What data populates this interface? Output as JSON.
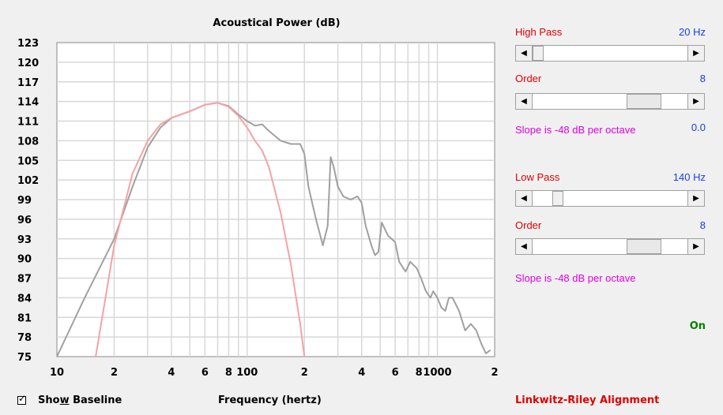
{
  "chart_data": {
    "type": "line",
    "title": "Acoustical Power (dB)",
    "xlabel": "Frequency (hertz)",
    "ylabel": "",
    "xscale": "log",
    "xlim": [
      10,
      2000
    ],
    "ylim": [
      75,
      123
    ],
    "y_ticks": [
      "123",
      "120",
      "117",
      "114",
      "111",
      "108",
      "105",
      "102",
      "99",
      "96",
      "93",
      "90",
      "87",
      "84",
      "81",
      "78",
      "75"
    ],
    "x_ticks": [
      {
        "value": 10,
        "label": "10"
      },
      {
        "value": 20,
        "label": "2"
      },
      {
        "value": 40,
        "label": "4"
      },
      {
        "value": 60,
        "label": "6"
      },
      {
        "value": 80,
        "label": "8"
      },
      {
        "value": 100,
        "label": "100"
      },
      {
        "value": 200,
        "label": "2"
      },
      {
        "value": 400,
        "label": "4"
      },
      {
        "value": 600,
        "label": "6"
      },
      {
        "value": 800,
        "label": "8"
      },
      {
        "value": 1000,
        "label": "1000"
      },
      {
        "value": 2000,
        "label": "2"
      }
    ],
    "grid": true,
    "series": [
      {
        "name": "",
        "color": "#a0a0a0",
        "points": [
          [
            10,
            75
          ],
          [
            14,
            84
          ],
          [
            20,
            93
          ],
          [
            25,
            101
          ],
          [
            30,
            107
          ],
          [
            35,
            110
          ],
          [
            40,
            111.5
          ],
          [
            50,
            112.5
          ],
          [
            60,
            113.5
          ],
          [
            70,
            113.8
          ],
          [
            80,
            113.3
          ],
          [
            90,
            112
          ],
          [
            100,
            111
          ],
          [
            110,
            110.3
          ],
          [
            120,
            110.5
          ],
          [
            130,
            109.5
          ],
          [
            150,
            108
          ],
          [
            170,
            107.5
          ],
          [
            190,
            107.5
          ],
          [
            200,
            106
          ],
          [
            210,
            101
          ],
          [
            230,
            96
          ],
          [
            250,
            92
          ],
          [
            265,
            95
          ],
          [
            275,
            105.5
          ],
          [
            285,
            104
          ],
          [
            300,
            101
          ],
          [
            320,
            99.5
          ],
          [
            350,
            99
          ],
          [
            380,
            99.5
          ],
          [
            400,
            98.5
          ],
          [
            420,
            95
          ],
          [
            450,
            92
          ],
          [
            470,
            90.5
          ],
          [
            490,
            91
          ],
          [
            510,
            95.5
          ],
          [
            550,
            93.5
          ],
          [
            600,
            92.5
          ],
          [
            630,
            89.5
          ],
          [
            680,
            88
          ],
          [
            720,
            89.5
          ],
          [
            780,
            88.5
          ],
          [
            820,
            87
          ],
          [
            870,
            85
          ],
          [
            920,
            84
          ],
          [
            950,
            85
          ],
          [
            1000,
            84
          ],
          [
            1050,
            82.5
          ],
          [
            1100,
            82
          ],
          [
            1150,
            84
          ],
          [
            1200,
            84
          ],
          [
            1300,
            82
          ],
          [
            1400,
            79
          ],
          [
            1500,
            80
          ],
          [
            1600,
            79
          ],
          [
            1700,
            77
          ],
          [
            1800,
            75.5
          ],
          [
            1900,
            76
          ]
        ]
      },
      {
        "name": "",
        "color": "#f4a3a3",
        "points": [
          [
            16,
            75
          ],
          [
            18,
            84
          ],
          [
            20,
            92
          ],
          [
            25,
            103
          ],
          [
            30,
            108
          ],
          [
            35,
            110.5
          ],
          [
            40,
            111.5
          ],
          [
            50,
            112.5
          ],
          [
            60,
            113.5
          ],
          [
            70,
            113.8
          ],
          [
            80,
            113.2
          ],
          [
            90,
            111.8
          ],
          [
            100,
            110
          ],
          [
            110,
            108
          ],
          [
            120,
            106.5
          ],
          [
            130,
            104
          ],
          [
            150,
            97
          ],
          [
            170,
            89
          ],
          [
            190,
            80
          ],
          [
            200,
            75
          ]
        ]
      }
    ]
  },
  "show_baseline": {
    "label_pre": "Sho",
    "label_u": "w",
    "label_post": " Baseline",
    "checked_mark": "✓"
  },
  "high_pass": {
    "label": "High Pass",
    "value": "20 Hz",
    "thumb_pos": 0.0,
    "order_label": "Order",
    "order_value": "8",
    "order_pos": 0.78,
    "slope_text": "Slope is -48 dB per octave",
    "offset_value": "0.0"
  },
  "low_pass": {
    "label": "Low Pass",
    "value": "140 Hz",
    "thumb_pos": 0.14,
    "order_label": "Order",
    "order_value": "8",
    "order_pos": 0.78,
    "slope_text": "Slope is -48 dB per octave"
  },
  "status": "On",
  "alignment": "Linkwitz-Riley Alignment",
  "colors": {
    "red": "#e00000",
    "blue": "#1a3ee8",
    "magenta": "#e000e0",
    "green": "#008000"
  }
}
